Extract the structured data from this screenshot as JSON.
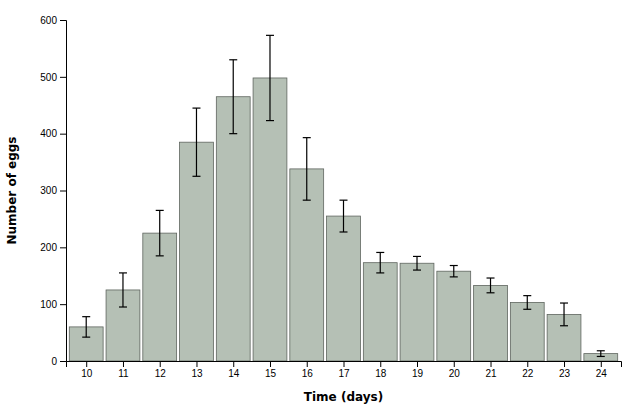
{
  "chart_data": {
    "type": "bar",
    "x": [
      10,
      11,
      12,
      13,
      14,
      15,
      16,
      17,
      18,
      19,
      20,
      21,
      22,
      23,
      24
    ],
    "values": [
      60,
      125,
      225,
      385,
      465,
      498,
      338,
      255,
      173,
      172,
      158,
      133,
      103,
      82,
      13
    ],
    "errors": [
      18,
      30,
      40,
      60,
      65,
      75,
      55,
      28,
      18,
      12,
      10,
      13,
      12,
      20,
      5
    ],
    "color": "#b5c0b5",
    "xlabel": "Time (days)",
    "ylabel": "Number of eggs",
    "xlim": [
      9.45,
      24.55
    ],
    "xticks": [
      10,
      11,
      12,
      13,
      14,
      15,
      16,
      17,
      18,
      19,
      20,
      21,
      22,
      23,
      24
    ],
    "ylim": [
      0,
      600
    ],
    "yticks": [
      0,
      100,
      200,
      300,
      400,
      500,
      600
    ],
    "grid": false
  }
}
